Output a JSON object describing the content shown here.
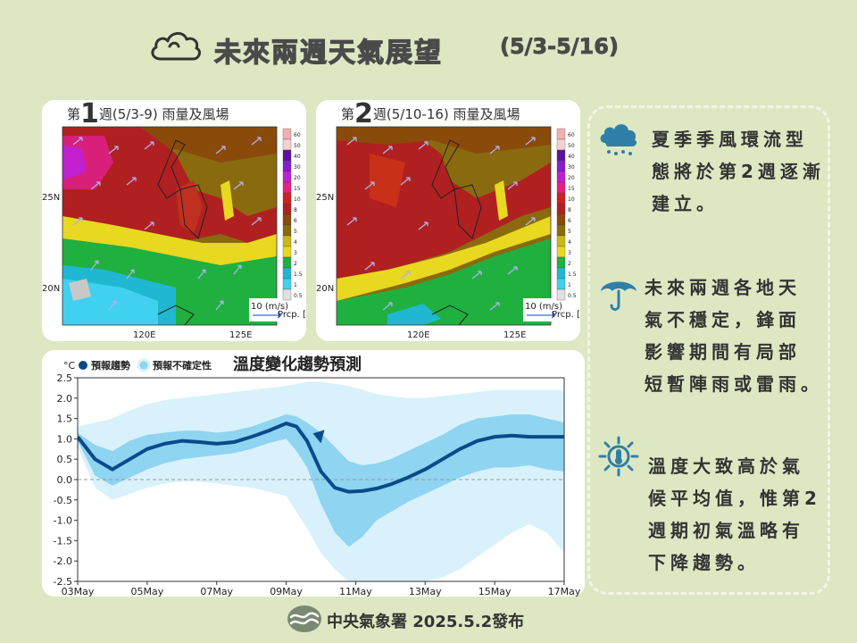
{
  "header": {
    "title": "未來兩週天氣展望",
    "date_range": "(5/3-5/16)",
    "icon": "cloud-icon"
  },
  "maps": [
    {
      "title_prefix": "第",
      "week_num": "1",
      "title_suffix": "週(5/3-9) 雨量及風場",
      "lat_labels": [
        "25N",
        "20N"
      ],
      "lon_labels": [
        "120E",
        "125E"
      ],
      "wind_legend": "10 (m/s)",
      "precip_legend": "Prcp. [mm/day]"
    },
    {
      "title_prefix": "第",
      "week_num": "2",
      "title_suffix": "週(5/10-16) 雨量及風場",
      "lat_labels": [
        "25N",
        "20N"
      ],
      "lon_labels": [
        "120E",
        "125E"
      ],
      "wind_legend": "10 (m/s)",
      "precip_legend": "Prcp. [mm/day]"
    }
  ],
  "colorbar_labels": [
    "60",
    "50",
    "40",
    "30",
    "20",
    "15",
    "10",
    "8",
    "6",
    "5",
    "4",
    "3",
    "2",
    "1.5",
    "1",
    "0.5"
  ],
  "temp_chart": {
    "title": "溫度變化趨勢預測",
    "unit": "°C",
    "legend_trend": "預報趨勢",
    "legend_uncertainty": "預報不確定性",
    "colors": {
      "trend": "#0b4a8a",
      "inner_band": "#8fd4f1",
      "outer_band": "#d9f1fa"
    }
  },
  "chart_data": {
    "type": "line",
    "title": "溫度變化趨勢預測",
    "ylabel": "°C",
    "ylim": [
      -2.5,
      2.5
    ],
    "xlim": [
      0,
      14
    ],
    "yticks": [
      "2.5",
      "2.0",
      "1.5",
      "1.0",
      "0.5",
      "0.0",
      "-0.5",
      "-1.0",
      "-1.5",
      "-2.0",
      "-2.5"
    ],
    "xticks": [
      {
        "x": 0,
        "label": "03May"
      },
      {
        "x": 2,
        "label": "05May"
      },
      {
        "x": 4,
        "label": "07May"
      },
      {
        "x": 6,
        "label": "09May"
      },
      {
        "x": 8,
        "label": "11May"
      },
      {
        "x": 10,
        "label": "13May"
      },
      {
        "x": 12,
        "label": "15May"
      },
      {
        "x": 14,
        "label": "17May"
      }
    ],
    "x": [
      0,
      0.5,
      1,
      1.5,
      2,
      2.5,
      3,
      3.5,
      4,
      4.5,
      5,
      5.5,
      6,
      6.3,
      6.6,
      7,
      7.4,
      7.8,
      8.2,
      8.6,
      9,
      9.5,
      10,
      10.5,
      11,
      11.5,
      12,
      12.5,
      13,
      13.5,
      14
    ],
    "series": [
      {
        "name": "預報趨勢",
        "values": [
          1.05,
          0.5,
          0.25,
          0.5,
          0.75,
          0.88,
          0.95,
          0.92,
          0.88,
          0.92,
          1.05,
          1.2,
          1.38,
          1.3,
          0.95,
          0.2,
          -0.2,
          -0.3,
          -0.28,
          -0.22,
          -0.12,
          0.05,
          0.25,
          0.5,
          0.75,
          0.95,
          1.05,
          1.08,
          1.05,
          1.05,
          1.05
        ]
      },
      {
        "name": "band_inner_upper",
        "values": [
          1.15,
          0.85,
          0.7,
          0.95,
          1.1,
          1.15,
          1.2,
          1.2,
          1.15,
          1.2,
          1.3,
          1.45,
          1.6,
          1.55,
          1.4,
          1.15,
          0.8,
          0.45,
          0.35,
          0.4,
          0.5,
          0.7,
          0.9,
          1.1,
          1.35,
          1.5,
          1.55,
          1.6,
          1.6,
          1.5,
          1.4
        ]
      },
      {
        "name": "band_inner_lower",
        "values": [
          0.95,
          0.1,
          -0.15,
          0.05,
          0.25,
          0.4,
          0.5,
          0.55,
          0.6,
          0.65,
          0.75,
          0.9,
          1.0,
          0.7,
          0.3,
          -0.6,
          -1.3,
          -1.65,
          -1.4,
          -1.0,
          -0.8,
          -0.55,
          -0.35,
          -0.15,
          0.05,
          0.2,
          0.3,
          0.3,
          0.35,
          0.25,
          0.2
        ]
      },
      {
        "name": "band_outer_upper",
        "values": [
          1.3,
          1.4,
          1.5,
          1.7,
          1.85,
          1.95,
          2.0,
          2.05,
          2.1,
          2.15,
          2.2,
          2.25,
          2.3,
          2.35,
          2.4,
          2.4,
          2.35,
          2.3,
          2.2,
          2.1,
          2.05,
          2.0,
          2.0,
          2.05,
          2.1,
          2.15,
          2.2,
          2.2,
          2.2,
          2.2,
          2.2
        ]
      },
      {
        "name": "band_outer_lower",
        "values": [
          0.8,
          -0.2,
          -0.5,
          -0.35,
          -0.2,
          -0.1,
          -0.05,
          -0.05,
          -0.1,
          -0.15,
          -0.2,
          -0.3,
          -0.4,
          -0.8,
          -1.2,
          -1.8,
          -2.2,
          -2.5,
          -2.5,
          -2.5,
          -2.5,
          -2.5,
          -2.5,
          -2.4,
          -2.2,
          -1.9,
          -1.6,
          -1.3,
          -1.1,
          -1.3,
          -1.8
        ]
      }
    ]
  },
  "notes": [
    {
      "icon": "rain-cloud-icon",
      "lines": [
        "夏季季風環流型",
        "態將於第2週逐漸",
        "建立。"
      ]
    },
    {
      "icon": "umbrella-icon",
      "lines": [
        "未來兩週各地天",
        "氣不穩定，鋒面",
        "影響期間有局部",
        "短暫陣雨或雷雨。"
      ]
    },
    {
      "icon": "thermometer-sun-icon",
      "lines": [
        "溫度大致高於氣",
        "候平均值，惟第2",
        "週期初氣溫略有",
        "下降趨勢。"
      ]
    }
  ],
  "footer": {
    "agency": "中央氣象署 2025.5.2發布",
    "logo": "cwa-logo-icon"
  }
}
